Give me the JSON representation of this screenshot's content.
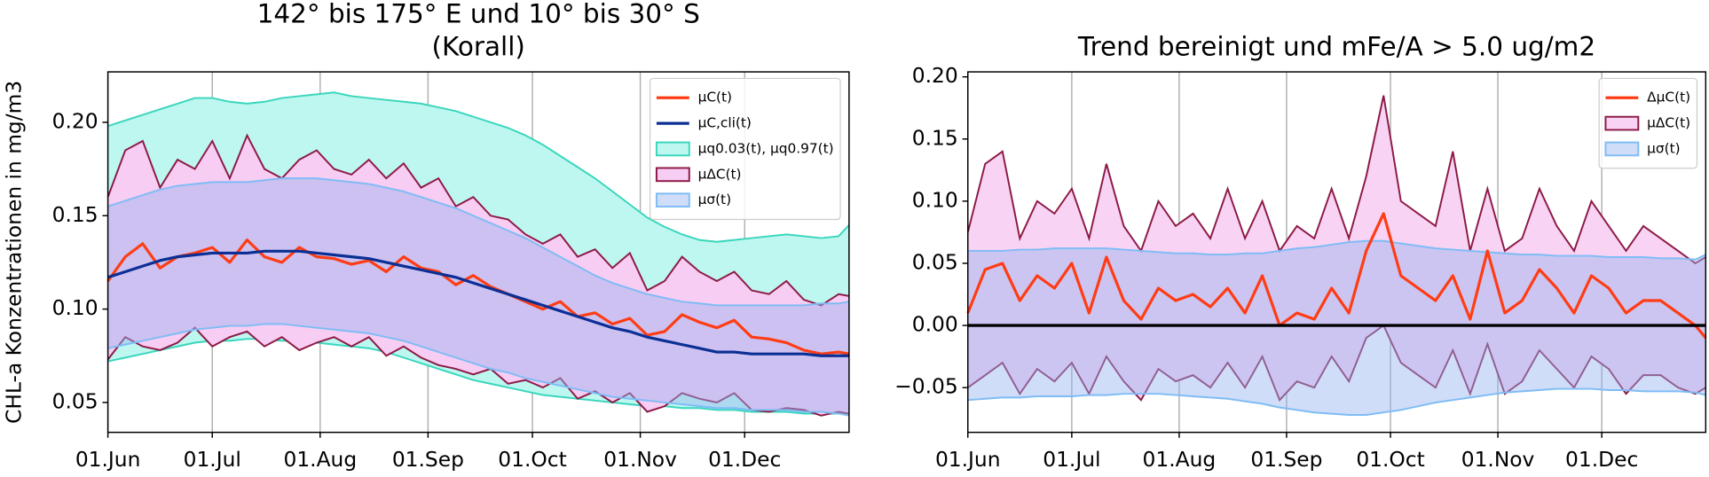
{
  "chart_data": [
    {
      "type": "line",
      "title": [
        "142° bis 175° E und 10° bis 30° S",
        "(Korall)"
      ],
      "ylabel": "CHL-a Konzentrationen in mg/m3",
      "x": [
        "01.Jun",
        "06.Jun",
        "11.Jun",
        "16.Jun",
        "21.Jun",
        "26.Jun",
        "01.Jul",
        "06.Jul",
        "11.Jul",
        "16.Jul",
        "21.Jul",
        "26.Jul",
        "31.Jul",
        "05.Aug",
        "10.Aug",
        "15.Aug",
        "20.Aug",
        "25.Aug",
        "30.Aug",
        "04.Sep",
        "09.Sep",
        "14.Sep",
        "19.Sep",
        "24.Sep",
        "29.Sep",
        "04.Oct",
        "09.Oct",
        "14.Oct",
        "19.Oct",
        "24.Oct",
        "29.Oct",
        "03.Nov",
        "08.Nov",
        "13.Nov",
        "18.Nov",
        "23.Nov",
        "28.Nov",
        "03.Dec",
        "08.Dec",
        "13.Dec",
        "18.Dec",
        "23.Dec",
        "28.Dec",
        "31.Dec"
      ],
      "xlim": [
        "01.Jun",
        "31.Dec"
      ],
      "xticks": [
        "01.Jun",
        "01.Jul",
        "01.Aug",
        "01.Sep",
        "01.Oct",
        "01.Nov",
        "01.Dec"
      ],
      "ylim": [
        0.034,
        0.227
      ],
      "yticks": [
        0.05,
        {
          "value": 0.1,
          "label": "0.10"
        },
        0.15,
        {
          "value": 0.2,
          "label": "0.20"
        }
      ],
      "grid": "x",
      "legend": "upper right",
      "series": [
        {
          "name": "μC(t)",
          "color": "#ff3c14",
          "values": [
            0.115,
            0.128,
            0.135,
            0.122,
            0.128,
            0.13,
            0.133,
            0.125,
            0.137,
            0.128,
            0.125,
            0.133,
            0.128,
            0.127,
            0.124,
            0.126,
            0.12,
            0.128,
            0.122,
            0.12,
            0.113,
            0.118,
            0.112,
            0.108,
            0.104,
            0.1,
            0.104,
            0.096,
            0.098,
            0.092,
            0.095,
            0.086,
            0.088,
            0.097,
            0.093,
            0.09,
            0.094,
            0.085,
            0.084,
            0.082,
            0.078,
            0.076,
            0.077,
            0.076
          ]
        },
        {
          "name": "μC,cli(t)",
          "color": "#0b2f94",
          "values": [
            0.117,
            0.12,
            0.123,
            0.126,
            0.128,
            0.129,
            0.13,
            0.13,
            0.13,
            0.131,
            0.131,
            0.131,
            0.13,
            0.129,
            0.128,
            0.127,
            0.125,
            0.123,
            0.121,
            0.119,
            0.117,
            0.114,
            0.111,
            0.108,
            0.105,
            0.102,
            0.099,
            0.096,
            0.093,
            0.09,
            0.088,
            0.085,
            0.083,
            0.081,
            0.079,
            0.077,
            0.077,
            0.076,
            0.076,
            0.076,
            0.076,
            0.075,
            0.075,
            0.075
          ]
        }
      ],
      "bands": [
        {
          "name": "μq0.03(t), μq0.97(t)",
          "color": "#bdf7f0",
          "edge_color": "#3ad6bd",
          "lower": [
            0.072,
            0.074,
            0.076,
            0.078,
            0.08,
            0.082,
            0.083,
            0.083,
            0.084,
            0.084,
            0.083,
            0.083,
            0.082,
            0.081,
            0.08,
            0.079,
            0.077,
            0.074,
            0.071,
            0.068,
            0.065,
            0.062,
            0.06,
            0.058,
            0.056,
            0.054,
            0.053,
            0.052,
            0.051,
            0.05,
            0.049,
            0.048,
            0.048,
            0.047,
            0.047,
            0.046,
            0.046,
            0.045,
            0.045,
            0.045,
            0.044,
            0.044,
            0.044,
            0.044
          ],
          "upper": [
            0.198,
            0.201,
            0.204,
            0.207,
            0.21,
            0.213,
            0.213,
            0.211,
            0.21,
            0.211,
            0.213,
            0.214,
            0.215,
            0.216,
            0.214,
            0.213,
            0.212,
            0.211,
            0.21,
            0.208,
            0.206,
            0.203,
            0.2,
            0.197,
            0.193,
            0.188,
            0.182,
            0.176,
            0.17,
            0.163,
            0.156,
            0.149,
            0.144,
            0.14,
            0.137,
            0.136,
            0.137,
            0.138,
            0.139,
            0.14,
            0.139,
            0.138,
            0.139,
            0.145
          ]
        },
        {
          "name": "μΔC(t)",
          "color": "#f8cdf3",
          "edge_color": "#8c1a45",
          "lower": [
            0.073,
            0.085,
            0.08,
            0.078,
            0.082,
            0.09,
            0.08,
            0.085,
            0.088,
            0.08,
            0.085,
            0.078,
            0.082,
            0.085,
            0.08,
            0.085,
            0.075,
            0.08,
            0.074,
            0.07,
            0.068,
            0.065,
            0.068,
            0.06,
            0.062,
            0.058,
            0.063,
            0.052,
            0.056,
            0.05,
            0.055,
            0.045,
            0.048,
            0.055,
            0.052,
            0.05,
            0.055,
            0.046,
            0.045,
            0.047,
            0.046,
            0.043,
            0.045,
            0.044
          ],
          "upper": [
            0.16,
            0.185,
            0.19,
            0.165,
            0.18,
            0.175,
            0.19,
            0.17,
            0.193,
            0.175,
            0.17,
            0.18,
            0.185,
            0.175,
            0.172,
            0.18,
            0.17,
            0.178,
            0.165,
            0.17,
            0.155,
            0.16,
            0.15,
            0.148,
            0.14,
            0.135,
            0.14,
            0.128,
            0.132,
            0.122,
            0.13,
            0.11,
            0.115,
            0.128,
            0.12,
            0.115,
            0.12,
            0.11,
            0.108,
            0.115,
            0.105,
            0.102,
            0.108,
            0.107
          ]
        },
        {
          "name": "μσ(t)",
          "color": "rgba(150,180,240,0.45)",
          "edge_color": "#7fbcf5",
          "lower": [
            0.079,
            0.081,
            0.083,
            0.085,
            0.087,
            0.089,
            0.09,
            0.091,
            0.091,
            0.092,
            0.092,
            0.091,
            0.09,
            0.089,
            0.088,
            0.087,
            0.085,
            0.083,
            0.08,
            0.077,
            0.074,
            0.071,
            0.068,
            0.066,
            0.063,
            0.061,
            0.059,
            0.057,
            0.055,
            0.053,
            0.052,
            0.051,
            0.05,
            0.049,
            0.048,
            0.047,
            0.047,
            0.046,
            0.046,
            0.046,
            0.045,
            0.045,
            0.044,
            0.043
          ],
          "upper": [
            0.155,
            0.158,
            0.161,
            0.164,
            0.166,
            0.167,
            0.168,
            0.168,
            0.168,
            0.169,
            0.17,
            0.17,
            0.17,
            0.169,
            0.168,
            0.167,
            0.165,
            0.163,
            0.16,
            0.157,
            0.154,
            0.15,
            0.146,
            0.142,
            0.138,
            0.133,
            0.128,
            0.123,
            0.118,
            0.114,
            0.111,
            0.108,
            0.106,
            0.104,
            0.103,
            0.102,
            0.102,
            0.102,
            0.102,
            0.102,
            0.102,
            0.103,
            0.103,
            0.104
          ]
        }
      ]
    },
    {
      "type": "line",
      "title": [
        "Trend bereinigt und mFe/A > 5.0 ug/m2"
      ],
      "x": [
        "01.Jun",
        "06.Jun",
        "11.Jun",
        "16.Jun",
        "21.Jun",
        "26.Jun",
        "01.Jul",
        "06.Jul",
        "11.Jul",
        "16.Jul",
        "21.Jul",
        "26.Jul",
        "31.Jul",
        "05.Aug",
        "10.Aug",
        "15.Aug",
        "20.Aug",
        "25.Aug",
        "30.Aug",
        "04.Sep",
        "09.Sep",
        "14.Sep",
        "19.Sep",
        "24.Sep",
        "29.Sep",
        "04.Oct",
        "09.Oct",
        "14.Oct",
        "19.Oct",
        "24.Oct",
        "29.Oct",
        "03.Nov",
        "08.Nov",
        "13.Nov",
        "18.Nov",
        "23.Nov",
        "28.Nov",
        "03.Dec",
        "08.Dec",
        "13.Dec",
        "18.Dec",
        "23.Dec",
        "28.Dec",
        "31.Dec"
      ],
      "xlim": [
        "01.Jun",
        "31.Dec"
      ],
      "xticks": [
        "01.Jun",
        "01.Jul",
        "01.Aug",
        "01.Sep",
        "01.Oct",
        "01.Nov",
        "01.Dec"
      ],
      "ylim": [
        -0.086,
        0.204
      ],
      "yticks": [
        {
          "value": -0.05,
          "label": "−0.05"
        },
        {
          "value": 0,
          "label": "0.00"
        },
        0.05,
        {
          "value": 0.1,
          "label": "0.10"
        },
        0.15,
        {
          "value": 0.2,
          "label": "0.20"
        }
      ],
      "grid": "x",
      "legend": "upper right",
      "hline": 0,
      "series": [
        {
          "name": "ΔμC(t)",
          "color": "#ff3c14",
          "values": [
            0.01,
            0.045,
            0.05,
            0.02,
            0.04,
            0.03,
            0.05,
            0.01,
            0.055,
            0.02,
            0.005,
            0.03,
            0.02,
            0.025,
            0.015,
            0.03,
            0.01,
            0.04,
            0.0,
            0.01,
            0.005,
            0.03,
            0.01,
            0.06,
            0.09,
            0.04,
            0.03,
            0.02,
            0.04,
            0.005,
            0.06,
            0.01,
            0.02,
            0.045,
            0.03,
            0.01,
            0.04,
            0.03,
            0.01,
            0.02,
            0.02,
            0.01,
            0.0,
            -0.01
          ]
        }
      ],
      "bands": [
        {
          "name": "μΔC(t)",
          "color": "#f8d3f4",
          "edge_color": "#8c1a45",
          "lower": [
            -0.05,
            -0.04,
            -0.03,
            -0.055,
            -0.035,
            -0.045,
            -0.03,
            -0.055,
            -0.025,
            -0.045,
            -0.06,
            -0.035,
            -0.045,
            -0.04,
            -0.05,
            -0.03,
            -0.05,
            -0.025,
            -0.06,
            -0.045,
            -0.05,
            -0.025,
            -0.045,
            -0.01,
            0.0,
            -0.03,
            -0.04,
            -0.05,
            -0.02,
            -0.055,
            -0.015,
            -0.055,
            -0.045,
            -0.02,
            -0.035,
            -0.05,
            -0.025,
            -0.035,
            -0.055,
            -0.04,
            -0.04,
            -0.05,
            -0.055,
            -0.05
          ],
          "upper": [
            0.075,
            0.13,
            0.14,
            0.07,
            0.1,
            0.09,
            0.11,
            0.07,
            0.13,
            0.08,
            0.06,
            0.1,
            0.08,
            0.09,
            0.07,
            0.11,
            0.07,
            0.1,
            0.06,
            0.08,
            0.07,
            0.11,
            0.07,
            0.12,
            0.185,
            0.1,
            0.09,
            0.08,
            0.14,
            0.06,
            0.11,
            0.06,
            0.07,
            0.11,
            0.08,
            0.06,
            0.1,
            0.08,
            0.06,
            0.08,
            0.07,
            0.06,
            0.05,
            0.055
          ]
        },
        {
          "name": "μσ(t)",
          "color": "rgba(150,180,240,0.45)",
          "edge_color": "#7fbcf5",
          "lower": [
            -0.06,
            -0.059,
            -0.058,
            -0.058,
            -0.057,
            -0.057,
            -0.057,
            -0.056,
            -0.056,
            -0.055,
            -0.055,
            -0.055,
            -0.056,
            -0.057,
            -0.058,
            -0.059,
            -0.061,
            -0.063,
            -0.066,
            -0.068,
            -0.07,
            -0.071,
            -0.072,
            -0.072,
            -0.07,
            -0.068,
            -0.065,
            -0.062,
            -0.06,
            -0.058,
            -0.056,
            -0.054,
            -0.053,
            -0.052,
            -0.051,
            -0.051,
            -0.051,
            -0.052,
            -0.052,
            -0.053,
            -0.053,
            -0.053,
            -0.054,
            -0.056
          ],
          "upper": [
            0.06,
            0.06,
            0.06,
            0.061,
            0.061,
            0.062,
            0.062,
            0.062,
            0.062,
            0.061,
            0.06,
            0.059,
            0.058,
            0.058,
            0.057,
            0.057,
            0.058,
            0.058,
            0.06,
            0.062,
            0.063,
            0.065,
            0.067,
            0.068,
            0.068,
            0.066,
            0.064,
            0.062,
            0.061,
            0.06,
            0.059,
            0.058,
            0.057,
            0.057,
            0.056,
            0.056,
            0.056,
            0.055,
            0.055,
            0.055,
            0.054,
            0.054,
            0.053,
            0.057
          ]
        }
      ]
    }
  ]
}
